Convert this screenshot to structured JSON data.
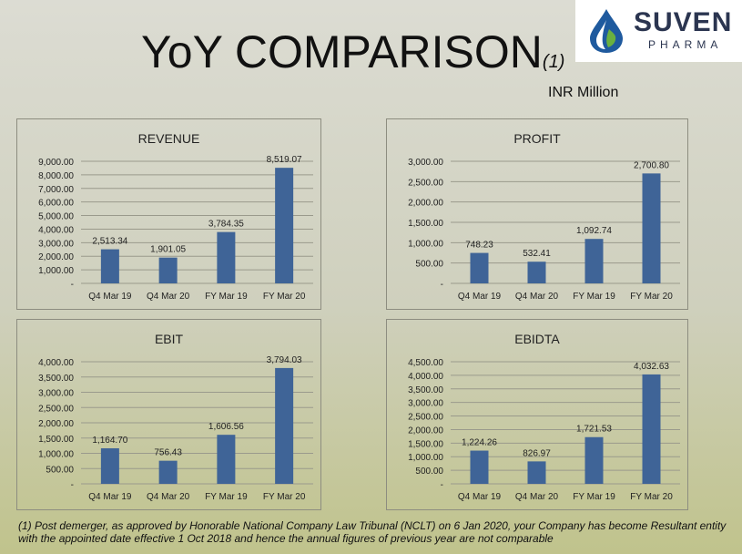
{
  "header": {
    "title": "YoY COMPARISON",
    "title_note": "(1)",
    "unit": "INR Million"
  },
  "logo": {
    "name": "SUVEN",
    "sub": "PHARMA",
    "icon": "droplet-icon",
    "colors": {
      "blue": "#1f5a9e",
      "green": "#6ab03f",
      "text": "#2b3550"
    }
  },
  "bar_color": "#3f6497",
  "chart_data": [
    {
      "type": "bar",
      "title": "REVENUE",
      "categories": [
        "Q4 Mar 19",
        "Q4 Mar 20",
        "FY Mar 19",
        "FY Mar 20"
      ],
      "values": [
        2513.34,
        1901.05,
        3784.35,
        8519.07
      ],
      "value_labels": [
        "2,513.34",
        "1,901.05",
        "3,784.35",
        "8,519.07"
      ],
      "ylim": [
        0,
        9000
      ],
      "yticks": [
        0,
        1000,
        2000,
        3000,
        4000,
        5000,
        6000,
        7000,
        8000,
        9000
      ],
      "ytick_labels": [
        "-",
        "1,000.00",
        "2,000.00",
        "3,000.00",
        "4,000.00",
        "5,000.00",
        "6,000.00",
        "7,000.00",
        "8,000.00",
        "9,000.00"
      ],
      "grid": true
    },
    {
      "type": "bar",
      "title": "PROFIT",
      "categories": [
        "Q4 Mar 19",
        "Q4 Mar 20",
        "FY Mar 19",
        "FY Mar 20"
      ],
      "values": [
        748.23,
        532.41,
        1092.74,
        2700.8
      ],
      "value_labels": [
        "748.23",
        "532.41",
        "1,092.74",
        "2,700.80"
      ],
      "ylim": [
        0,
        3000
      ],
      "yticks": [
        0,
        500,
        1000,
        1500,
        2000,
        2500,
        3000
      ],
      "ytick_labels": [
        "-",
        "500.00",
        "1,000.00",
        "1,500.00",
        "2,000.00",
        "2,500.00",
        "3,000.00"
      ],
      "grid": true
    },
    {
      "type": "bar",
      "title": "EBIT",
      "categories": [
        "Q4 Mar 19",
        "Q4 Mar 20",
        "FY Mar 19",
        "FY Mar 20"
      ],
      "values": [
        1164.7,
        756.43,
        1606.56,
        3794.03
      ],
      "value_labels": [
        "1,164.70",
        "756.43",
        "1,606.56",
        "3,794.03"
      ],
      "ylim": [
        0,
        4000
      ],
      "yticks": [
        0,
        500,
        1000,
        1500,
        2000,
        2500,
        3000,
        3500,
        4000
      ],
      "ytick_labels": [
        "-",
        "500.00",
        "1,000.00",
        "1,500.00",
        "2,000.00",
        "2,500.00",
        "3,000.00",
        "3,500.00",
        "4,000.00"
      ],
      "grid": true
    },
    {
      "type": "bar",
      "title": "EBIDTA",
      "categories": [
        "Q4 Mar 19",
        "Q4 Mar 20",
        "FY Mar 19",
        "FY Mar 20"
      ],
      "values": [
        1224.26,
        826.97,
        1721.53,
        4032.63
      ],
      "value_labels": [
        "1,224.26",
        "826.97",
        "1,721.53",
        "4,032.63"
      ],
      "ylim": [
        0,
        4500
      ],
      "yticks": [
        0,
        500,
        1000,
        1500,
        2000,
        2500,
        3000,
        3500,
        4000,
        4500
      ],
      "ytick_labels": [
        "-",
        "500.00",
        "1,000.00",
        "1,500.00",
        "2,000.00",
        "2,500.00",
        "3,000.00",
        "3,500.00",
        "4,000.00",
        "4,500.00"
      ],
      "grid": true
    }
  ],
  "footnote": "(1) Post demerger, as approved by Honorable National Company Law Tribunal (NCLT) on 6 Jan 2020, your Company has become Resultant entity with the appointed date effective 1 Oct 2018 and hence the annual figures of previous year are not comparable"
}
